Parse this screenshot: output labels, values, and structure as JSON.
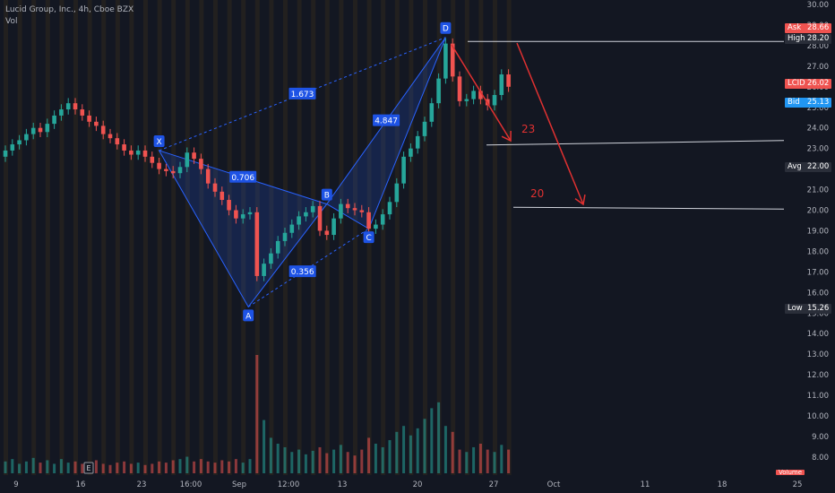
{
  "legend": {
    "title": "Lucid Group, Inc., 4h, Cboe BZX",
    "vol_label": "Vol"
  },
  "colors": {
    "background": "#131722",
    "up": "#26a69a",
    "down": "#ef5350",
    "pattern": "#2962ff",
    "arrow": "#e03131",
    "axis_text": "#b2b5be"
  },
  "price_axis": {
    "ticks": [
      "30.00",
      "29.00",
      "28.00",
      "27.00",
      "26.00",
      "25.00",
      "24.00",
      "23.00",
      "22.00",
      "21.00",
      "20.00",
      "19.00",
      "18.00",
      "17.00",
      "16.00",
      "15.00",
      "14.00",
      "13.00",
      "12.00",
      "11.00",
      "10.00",
      "9.00",
      "8.00"
    ]
  },
  "time_axis": {
    "ticks": [
      "9",
      "16",
      "23",
      "16:00",
      "Sep",
      "12:00",
      "13",
      "20",
      "27",
      "Oct",
      "11",
      "18",
      "25"
    ]
  },
  "price_badges": [
    {
      "key": "Ask",
      "value": "28.66",
      "color": "#ef5350"
    },
    {
      "key": "High",
      "value": "28.20",
      "color": "#2a2e39"
    },
    {
      "key": "LCID",
      "value": "26.02",
      "color": "#ef5350"
    },
    {
      "key": "Bid",
      "value": "25.13",
      "color": "#2196f3"
    },
    {
      "key": "Avg",
      "value": "22.00",
      "color": "#2a2e39"
    },
    {
      "key": "Low",
      "value": "15.26",
      "color": "#2a2e39"
    }
  ],
  "volume_badge": "Volume",
  "events": [
    "E"
  ],
  "harmonic": {
    "points": [
      {
        "label": "X",
        "price": 22.9
      },
      {
        "label": "A",
        "price": 15.3
      },
      {
        "label": "B",
        "price": 20.3
      },
      {
        "label": "C",
        "price": 19.1
      },
      {
        "label": "D",
        "price": 28.4
      }
    ],
    "ratios": [
      "1.673",
      "0.706",
      "0.356",
      "4.847"
    ]
  },
  "targets": [
    {
      "label": "23",
      "price": 23.3
    },
    {
      "label": "20",
      "price": 20.1
    }
  ],
  "chart_data": {
    "type": "candlestick",
    "title": "Lucid Group, Inc., 4h, Cboe BZX",
    "ylim": [
      7.5,
      30.0
    ],
    "x_range": [
      "Aug 9",
      "Oct 25"
    ],
    "x_labels": [
      "9",
      "16",
      "23",
      "16:00",
      "Sep",
      "12:00",
      "13",
      "20",
      "27",
      "Oct",
      "11",
      "18",
      "25"
    ],
    "series": [
      {
        "name": "LCID",
        "close": [
          22.9,
          23.2,
          23.4,
          23.7,
          24.0,
          23.8,
          24.2,
          24.6,
          24.9,
          25.2,
          24.9,
          24.6,
          24.3,
          24.1,
          23.7,
          23.5,
          23.2,
          22.9,
          22.7,
          22.9,
          22.6,
          22.3,
          22.0,
          21.9,
          21.8,
          22.1,
          22.8,
          22.5,
          22.0,
          21.3,
          20.9,
          20.5,
          20.0,
          19.6,
          19.8,
          19.9,
          16.8,
          17.4,
          17.9,
          18.5,
          18.9,
          19.3,
          19.7,
          19.9,
          20.2,
          19.0,
          18.8,
          19.6,
          20.3,
          20.1,
          20.0,
          19.9,
          19.1,
          19.3,
          19.8,
          20.4,
          21.3,
          22.6,
          23.0,
          23.6,
          24.3,
          25.2,
          26.4,
          28.1,
          26.5,
          25.3,
          25.4,
          25.8,
          25.4,
          25.1,
          25.6,
          26.6,
          26.0
        ],
        "volume_relative": [
          0.1,
          0.12,
          0.08,
          0.1,
          0.13,
          0.09,
          0.11,
          0.08,
          0.12,
          0.09,
          0.1,
          0.08,
          0.09,
          0.11,
          0.08,
          0.07,
          0.09,
          0.1,
          0.08,
          0.09,
          0.07,
          0.08,
          0.1,
          0.09,
          0.11,
          0.12,
          0.14,
          0.1,
          0.12,
          0.1,
          0.09,
          0.11,
          0.1,
          0.12,
          0.09,
          0.12,
          1.0,
          0.45,
          0.3,
          0.25,
          0.22,
          0.18,
          0.2,
          0.16,
          0.19,
          0.22,
          0.17,
          0.2,
          0.24,
          0.18,
          0.15,
          0.2,
          0.3,
          0.25,
          0.22,
          0.28,
          0.35,
          0.4,
          0.32,
          0.38,
          0.46,
          0.55,
          0.6,
          0.4,
          0.35,
          0.2,
          0.18,
          0.22,
          0.25,
          0.2,
          0.18,
          0.24,
          0.2
        ]
      }
    ],
    "harmonic_pattern": {
      "X": 22.9,
      "A": 15.3,
      "B": 20.3,
      "C": 19.1,
      "D": 28.4,
      "ratios": {
        "XA_B": 0.706,
        "AB_C": 0.356,
        "BC_D": 4.847,
        "XA_D": 1.673
      }
    },
    "targets": [
      23,
      20
    ],
    "horizontal_lines": [
      28.2,
      23.3,
      20.1
    ]
  }
}
